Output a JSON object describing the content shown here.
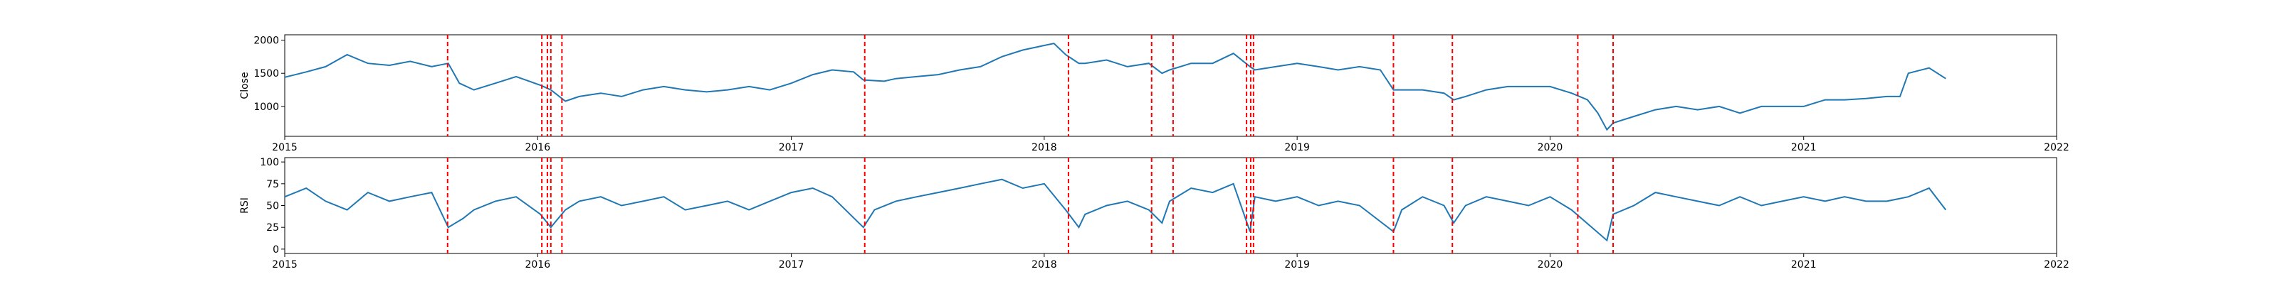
{
  "chart_data": [
    {
      "type": "line",
      "ylabel": "Close",
      "xlim": [
        "2015-01-01",
        "2022-01-01"
      ],
      "ylim": [
        550,
        2080
      ],
      "yticks": [
        1000,
        1500,
        2000
      ],
      "xticks": [
        "2015",
        "2016",
        "2017",
        "2018",
        "2019",
        "2020",
        "2021",
        "2022"
      ],
      "line_color": "#1f77b4",
      "series": [
        {
          "x": [
            "2015-01-01",
            "2015-02-01",
            "2015-03-01",
            "2015-04-01",
            "2015-05-01",
            "2015-06-01",
            "2015-07-01",
            "2015-08-01",
            "2015-08-25",
            "2015-09-10",
            "2015-10-01",
            "2015-11-01",
            "2015-12-01",
            "2016-01-05",
            "2016-01-20",
            "2016-02-10",
            "2016-03-01",
            "2016-04-01",
            "2016-05-01",
            "2016-06-01",
            "2016-07-01",
            "2016-08-01",
            "2016-09-01",
            "2016-10-01",
            "2016-11-01",
            "2016-12-01",
            "2017-01-01",
            "2017-02-01",
            "2017-03-01",
            "2017-04-01",
            "2017-04-15",
            "2017-05-15",
            "2017-06-01",
            "2017-07-01",
            "2017-08-01",
            "2017-09-01",
            "2017-10-01",
            "2017-11-01",
            "2017-12-01",
            "2018-01-01",
            "2018-01-15",
            "2018-02-01",
            "2018-02-20",
            "2018-03-01",
            "2018-04-01",
            "2018-05-01",
            "2018-06-01",
            "2018-06-20",
            "2018-07-01",
            "2018-08-01",
            "2018-09-01",
            "2018-10-01",
            "2018-10-25",
            "2018-11-01",
            "2018-12-01",
            "2019-01-01",
            "2019-02-01",
            "2019-03-01",
            "2019-04-01",
            "2019-05-01",
            "2019-05-20",
            "2019-06-01",
            "2019-07-01",
            "2019-08-01",
            "2019-08-15",
            "2019-09-01",
            "2019-10-01",
            "2019-11-01",
            "2019-12-01",
            "2020-01-01",
            "2020-02-01",
            "2020-02-24",
            "2020-03-10",
            "2020-03-23",
            "2020-04-01",
            "2020-05-01",
            "2020-06-01",
            "2020-07-01",
            "2020-08-01",
            "2020-09-01",
            "2020-10-01",
            "2020-11-01",
            "2020-12-01",
            "2021-01-01",
            "2021-02-01",
            "2021-03-01",
            "2021-04-01",
            "2021-05-01",
            "2021-05-20",
            "2021-06-01",
            "2021-07-01",
            "2021-07-25"
          ],
          "y": [
            1440,
            1520,
            1600,
            1780,
            1650,
            1620,
            1680,
            1600,
            1650,
            1350,
            1250,
            1350,
            1450,
            1320,
            1250,
            1080,
            1150,
            1200,
            1150,
            1250,
            1300,
            1250,
            1220,
            1250,
            1300,
            1250,
            1350,
            1480,
            1550,
            1520,
            1400,
            1380,
            1420,
            1450,
            1480,
            1550,
            1600,
            1750,
            1850,
            1920,
            1950,
            1780,
            1650,
            1650,
            1700,
            1600,
            1650,
            1500,
            1550,
            1650,
            1650,
            1800,
            1600,
            1550,
            1600,
            1650,
            1600,
            1550,
            1600,
            1550,
            1250,
            1250,
            1250,
            1200,
            1100,
            1150,
            1250,
            1300,
            1300,
            1300,
            1200,
            1100,
            900,
            650,
            750,
            850,
            950,
            1000,
            950,
            1000,
            900,
            1000,
            1000,
            1000,
            1100,
            1100,
            1120,
            1150,
            1150,
            1500,
            1580,
            1420
          ]
        }
      ]
    },
    {
      "type": "line",
      "ylabel": "RSI",
      "xlim": [
        "2015-01-01",
        "2022-01-01"
      ],
      "ylim": [
        -5,
        105
      ],
      "yticks": [
        0,
        25,
        50,
        75,
        100
      ],
      "xticks": [
        "2015",
        "2016",
        "2017",
        "2018",
        "2019",
        "2020",
        "2021",
        "2022"
      ],
      "line_color": "#1f77b4",
      "series": [
        {
          "x": [
            "2015-01-01",
            "2015-02-01",
            "2015-03-01",
            "2015-04-01",
            "2015-05-01",
            "2015-06-01",
            "2015-07-01",
            "2015-08-01",
            "2015-08-25",
            "2015-09-15",
            "2015-10-01",
            "2015-11-01",
            "2015-12-01",
            "2016-01-05",
            "2016-01-20",
            "2016-02-10",
            "2016-03-01",
            "2016-04-01",
            "2016-05-01",
            "2016-06-01",
            "2016-07-01",
            "2016-08-01",
            "2016-09-01",
            "2016-10-01",
            "2016-11-01",
            "2016-12-01",
            "2017-01-01",
            "2017-02-01",
            "2017-03-01",
            "2017-04-15",
            "2017-05-01",
            "2017-06-01",
            "2017-07-01",
            "2017-08-01",
            "2017-09-01",
            "2017-10-01",
            "2017-11-01",
            "2017-12-01",
            "2018-01-01",
            "2018-02-01",
            "2018-02-20",
            "2018-03-01",
            "2018-04-01",
            "2018-05-01",
            "2018-06-01",
            "2018-06-20",
            "2018-07-01",
            "2018-08-01",
            "2018-09-01",
            "2018-10-01",
            "2018-10-25",
            "2018-11-01",
            "2018-12-01",
            "2019-01-01",
            "2019-02-01",
            "2019-03-01",
            "2019-04-01",
            "2019-05-20",
            "2019-06-01",
            "2019-07-01",
            "2019-08-01",
            "2019-08-15",
            "2019-09-01",
            "2019-10-01",
            "2019-11-01",
            "2019-12-01",
            "2020-01-01",
            "2020-02-01",
            "2020-03-23",
            "2020-04-01",
            "2020-05-01",
            "2020-06-01",
            "2020-07-01",
            "2020-08-01",
            "2020-09-01",
            "2020-10-01",
            "2020-11-01",
            "2020-12-01",
            "2021-01-01",
            "2021-02-01",
            "2021-03-01",
            "2021-04-01",
            "2021-05-01",
            "2021-06-01",
            "2021-07-01",
            "2021-07-25"
          ],
          "y": [
            60,
            70,
            55,
            45,
            65,
            55,
            60,
            65,
            25,
            35,
            45,
            55,
            60,
            40,
            25,
            45,
            55,
            60,
            50,
            55,
            60,
            45,
            50,
            55,
            45,
            55,
            65,
            70,
            60,
            25,
            45,
            55,
            60,
            65,
            70,
            75,
            80,
            70,
            75,
            45,
            25,
            40,
            50,
            55,
            45,
            30,
            55,
            70,
            65,
            75,
            20,
            60,
            55,
            60,
            50,
            55,
            50,
            20,
            45,
            60,
            50,
            30,
            50,
            60,
            55,
            50,
            60,
            45,
            10,
            40,
            50,
            65,
            60,
            55,
            50,
            60,
            50,
            55,
            60,
            55,
            60,
            55,
            55,
            60,
            70,
            45
          ]
        }
      ]
    }
  ],
  "event_dates": [
    "2015-08-24",
    "2016-01-07",
    "2016-01-15",
    "2016-01-20",
    "2016-02-05",
    "2017-04-17",
    "2018-02-05",
    "2018-06-05",
    "2018-07-06",
    "2018-10-20",
    "2018-10-26",
    "2018-10-30",
    "2019-05-20",
    "2019-08-13",
    "2020-02-10",
    "2020-04-01"
  ],
  "event_color": "#ff0000"
}
